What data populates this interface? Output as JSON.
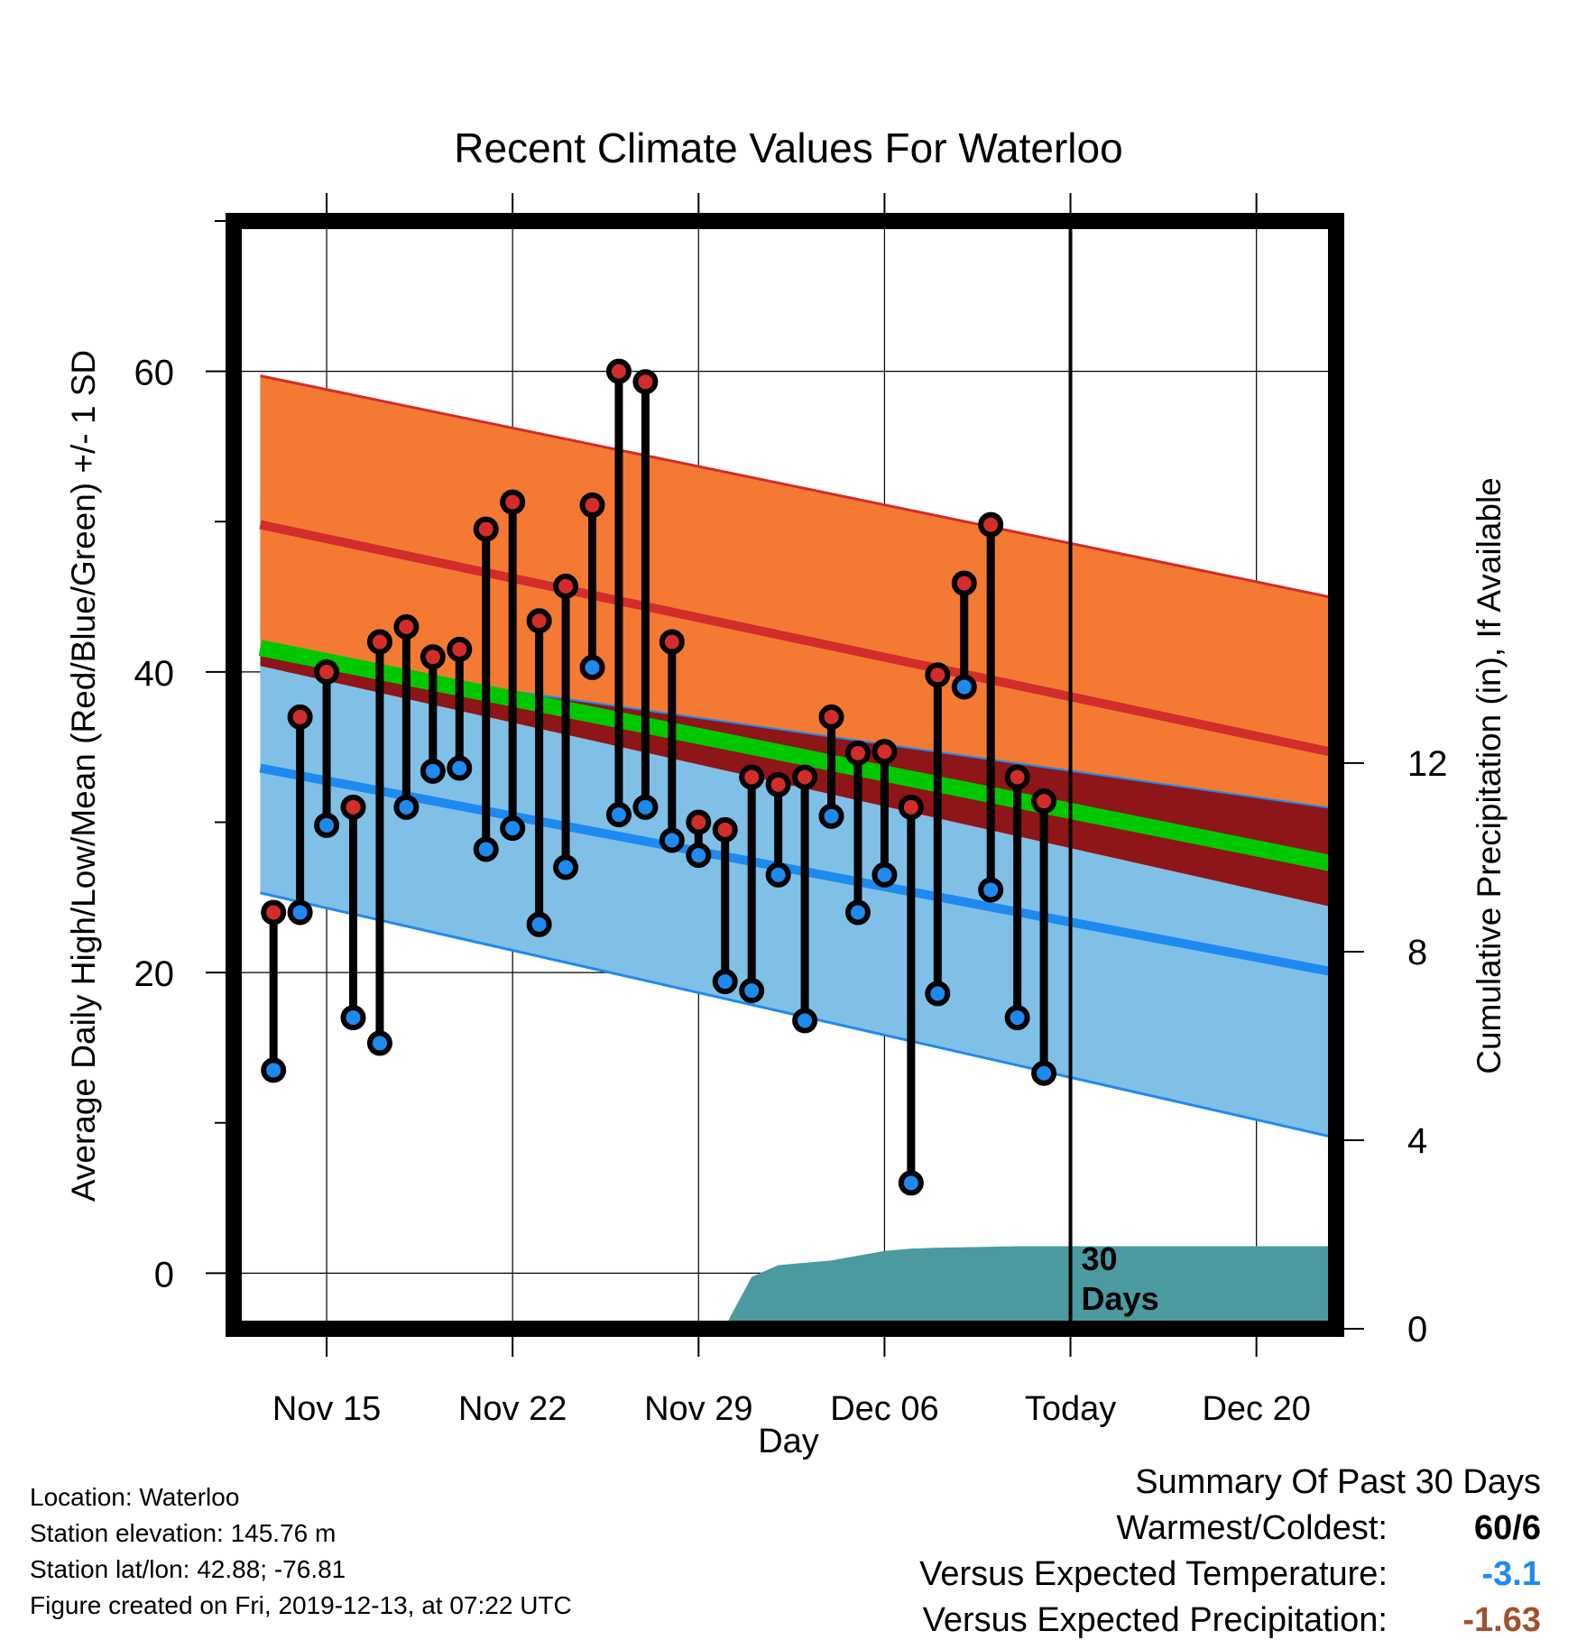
{
  "chart_data": {
    "type": "line",
    "title": "Recent Climate Values For Waterloo",
    "xlabel": "Day",
    "ylabel_left": "Average Daily High/Low/Mean (Red/Blue/Green) +/- 1 SD",
    "ylabel_right": "Cumulative Precipitation (in), If Available",
    "x_tick_labels": [
      "Nov 15",
      "Nov 22",
      "Nov 29",
      "Dec 06",
      "Today",
      "Dec 20"
    ],
    "x_tick_days": [
      2,
      9,
      16,
      23,
      30,
      37
    ],
    "ylim_left": [
      -3.7,
      70
    ],
    "yticks_left": [
      0,
      20,
      40,
      60
    ],
    "ylim_right": [
      0,
      23.5
    ],
    "yticks_right": [
      0,
      4,
      8,
      12
    ],
    "x_range_days": [
      -1.5,
      40
    ],
    "today_day": 30,
    "today_label_line1": "30",
    "today_label_line2": "Days",
    "normals": {
      "days": [
        -0.5,
        40
      ],
      "high_mean": [
        49.8,
        34.6
      ],
      "high_plus_sd": [
        59.7,
        44.9
      ],
      "high_minus_sd": [
        41.1,
        30.9
      ],
      "low_mean": [
        33.6,
        20.0
      ],
      "low_plus_sd": [
        40.4,
        24.3
      ],
      "low_minus_sd": [
        25.3,
        9.0
      ],
      "avg_mean": [
        41.6,
        27.2
      ]
    },
    "observed": {
      "days": [
        0,
        1,
        2,
        3,
        4,
        5,
        6,
        7,
        8,
        9,
        10,
        11,
        12,
        13,
        14,
        15,
        16,
        17,
        18,
        19,
        20,
        21,
        22,
        23,
        24,
        25,
        26,
        27,
        28,
        29
      ],
      "high": [
        24,
        37,
        40,
        31,
        42,
        43,
        41,
        41.5,
        49.5,
        51.3,
        43.4,
        45.7,
        51.1,
        60,
        59.3,
        42,
        30,
        29.5,
        33,
        32.5,
        33,
        37,
        34.6,
        34.7,
        31,
        39.8,
        45.9,
        49.8,
        33,
        31.4
      ],
      "low": [
        13.5,
        24,
        29.8,
        17,
        15.3,
        31,
        33.4,
        33.6,
        28.2,
        29.6,
        23.2,
        27,
        40.3,
        30.5,
        31,
        28.8,
        27.8,
        19.4,
        18.8,
        26.5,
        16.8,
        30.4,
        24,
        26.5,
        6,
        18.6,
        39,
        25.5,
        17,
        13.3
      ]
    },
    "cumulative_precip": {
      "days": [
        14,
        15,
        16,
        17,
        18,
        19,
        20,
        21,
        22,
        23,
        24,
        25,
        26,
        27,
        28,
        29,
        30,
        40
      ],
      "values": [
        0,
        0.05,
        0.05,
        0.05,
        1.1,
        1.35,
        1.4,
        1.45,
        1.55,
        1.65,
        1.7,
        1.72,
        1.73,
        1.74,
        1.75,
        1.75,
        1.75,
        1.75
      ]
    },
    "colors": {
      "high_band": "#f47a33",
      "high_line": "#d22d2a",
      "low_band": "#80c0e6",
      "low_line": "#1e8af0",
      "overlap_band": "#8e1518",
      "avg_line": "#00c800",
      "precip": "#4a9aa0",
      "high_dot": "#d22d2a",
      "low_dot": "#1e8af0"
    }
  },
  "footer": {
    "location": "Location: Waterloo",
    "elevation": "Station elevation: 145.76 m",
    "latlon": "Station lat/lon: 42.88; -76.81",
    "created": "Figure created on Fri, 2019-12-13, at 07:22 UTC"
  },
  "summary": {
    "title": "Summary Of Past 30 Days",
    "warmest_coldest_label": "Warmest/Coldest:",
    "warmest_coldest_value": "60/6",
    "temp_label": "Versus Expected Temperature:",
    "temp_value": "-3.1",
    "temp_color": "#1e8af0",
    "precip_label": "Versus Expected Precipitation:",
    "precip_value": "-1.63",
    "precip_color": "#a0522d"
  }
}
